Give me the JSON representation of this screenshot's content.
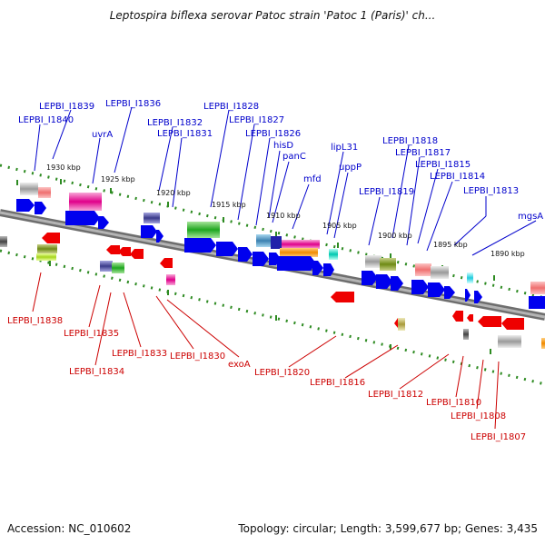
{
  "header": {
    "title": "Leptospira biflexa serovar Patoc strain 'Patoc 1 (Paris)' ch..."
  },
  "footer": {
    "accession": "Accession: NC_010602",
    "topology": "Topology: circular; Length: 3,599,677 bp; Genes: 3,435"
  },
  "map": {
    "kbp_ticks": [
      "1930 kbp",
      "1925 kbp",
      "1920 kbp",
      "1915 kbp",
      "1910 kbp",
      "1905 kbp",
      "1900 kbp",
      "1895 kbp",
      "1890 kbp"
    ],
    "forward_labels": [
      "LEPBI_I1839",
      "LEPBI_I1840",
      "LEPBI_I1836",
      "uvrA",
      "LEPBI_I1832",
      "LEPBI_I1831",
      "LEPBI_I1828",
      "LEPBI_I1827",
      "LEPBI_I1826",
      "hisD",
      "panC",
      "mfd",
      "lipL31",
      "uppP",
      "LEPBI_I1818",
      "LEPBI_I1817",
      "LEPBI_I1815",
      "LEPBI_I1814",
      "LEPBI_I1819",
      "LEPBI_I1813",
      "mgsA"
    ],
    "reverse_labels": [
      "LEPBI_I1838",
      "LEPBI_I1835",
      "LEPBI_I1834",
      "LEPBI_I1833",
      "LEPBI_I1830",
      "exoA",
      "LEPBI_I1820",
      "LEPBI_I1816",
      "LEPBI_I1812",
      "LEPBI_I1810",
      "LEPBI_I1808",
      "LEPBI_I1807"
    ]
  },
  "colors": {
    "forward_label": "#0000cc",
    "reverse_label": "#cc0000",
    "backbone": "#777777",
    "tick_dots": "#2e8b22",
    "forward_gene": "#0000ee",
    "reverse_gene": "#ee0000"
  }
}
